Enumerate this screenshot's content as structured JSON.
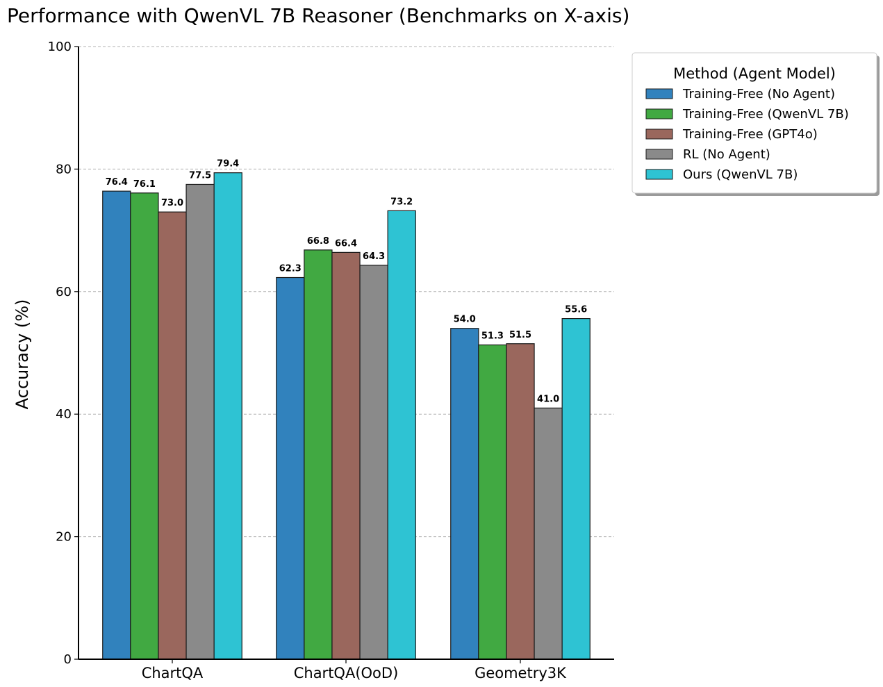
{
  "chart_data": {
    "type": "bar",
    "title": "Performance with QwenVL 7B Reasoner (Benchmarks on X-axis)",
    "xlabel": "",
    "ylabel": "Accuracy (%)",
    "ylim": [
      0,
      100
    ],
    "yticks": [
      0,
      20,
      40,
      60,
      80,
      100
    ],
    "grid": "y-dashed",
    "legend_title": "Method (Agent Model)",
    "legend_position": "outside-right-top",
    "categories": [
      "ChartQA",
      "ChartQA(OoD)",
      "Geometry3K"
    ],
    "series": [
      {
        "name": "Training-Free (No Agent)",
        "color": "#3182bd",
        "values": [
          76.4,
          62.3,
          54.0
        ]
      },
      {
        "name": "Training-Free (QwenVL 7B)",
        "color": "#41a942",
        "values": [
          76.1,
          66.8,
          51.3
        ]
      },
      {
        "name": "Training-Free (GPT4o)",
        "color": "#9a675d",
        "values": [
          73.0,
          66.4,
          51.5
        ]
      },
      {
        "name": "RL (No Agent)",
        "color": "#8a8a8a",
        "values": [
          77.5,
          64.3,
          41.0
        ]
      },
      {
        "name": "Ours (QwenVL 7B)",
        "color": "#2ec3d3",
        "values": [
          79.4,
          73.2,
          55.6
        ]
      }
    ]
  }
}
